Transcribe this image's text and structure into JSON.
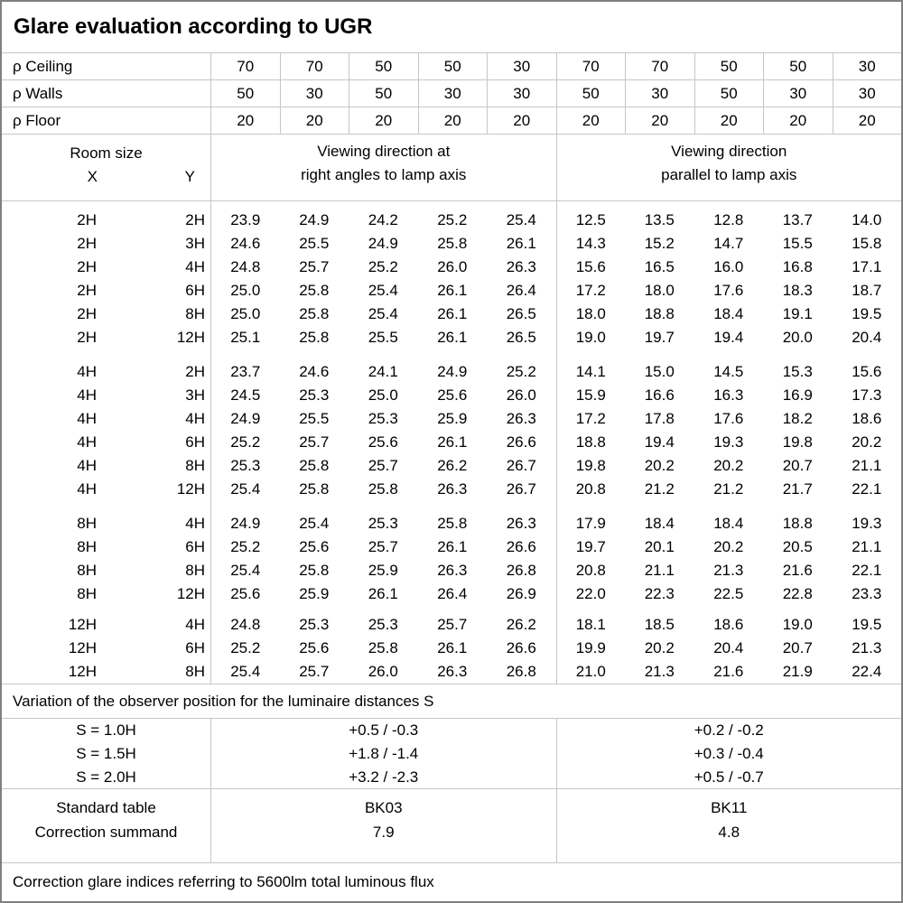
{
  "title": "Glare evaluation according to UGR",
  "colors": {
    "background": "#ffffff",
    "text": "#000000",
    "grid_line": "#c6c6c6",
    "outer_border": "#808080"
  },
  "reflectance_rows": [
    {
      "label": "ρ Ceiling",
      "values": [
        "70",
        "70",
        "50",
        "50",
        "30",
        "70",
        "70",
        "50",
        "50",
        "30"
      ]
    },
    {
      "label": "ρ Walls",
      "values": [
        "50",
        "30",
        "50",
        "30",
        "30",
        "50",
        "30",
        "50",
        "30",
        "30"
      ]
    },
    {
      "label": "ρ Floor",
      "values": [
        "20",
        "20",
        "20",
        "20",
        "20",
        "20",
        "20",
        "20",
        "20",
        "20"
      ]
    }
  ],
  "room_size_header": {
    "title": "Room size",
    "x": "X",
    "y": "Y"
  },
  "viewing_right_angles": {
    "line1": "Viewing direction at",
    "line2": "right angles to lamp axis"
  },
  "viewing_parallel": {
    "line1": "Viewing direction",
    "line2": "parallel to lamp axis"
  },
  "ugr_table": {
    "blocks": [
      {
        "rows": [
          {
            "x": "2H",
            "y": "2H",
            "right_angles": [
              "23.9",
              "24.9",
              "24.2",
              "25.2",
              "25.4"
            ],
            "parallel": [
              "12.5",
              "13.5",
              "12.8",
              "13.7",
              "14.0"
            ]
          },
          {
            "x": "2H",
            "y": "3H",
            "right_angles": [
              "24.6",
              "25.5",
              "24.9",
              "25.8",
              "26.1"
            ],
            "parallel": [
              "14.3",
              "15.2",
              "14.7",
              "15.5",
              "15.8"
            ]
          },
          {
            "x": "2H",
            "y": "4H",
            "right_angles": [
              "24.8",
              "25.7",
              "25.2",
              "26.0",
              "26.3"
            ],
            "parallel": [
              "15.6",
              "16.5",
              "16.0",
              "16.8",
              "17.1"
            ]
          },
          {
            "x": "2H",
            "y": "6H",
            "right_angles": [
              "25.0",
              "25.8",
              "25.4",
              "26.1",
              "26.4"
            ],
            "parallel": [
              "17.2",
              "18.0",
              "17.6",
              "18.3",
              "18.7"
            ]
          },
          {
            "x": "2H",
            "y": "8H",
            "right_angles": [
              "25.0",
              "25.8",
              "25.4",
              "26.1",
              "26.5"
            ],
            "parallel": [
              "18.0",
              "18.8",
              "18.4",
              "19.1",
              "19.5"
            ]
          },
          {
            "x": "2H",
            "y": "12H",
            "right_angles": [
              "25.1",
              "25.8",
              "25.5",
              "26.1",
              "26.5"
            ],
            "parallel": [
              "19.0",
              "19.7",
              "19.4",
              "20.0",
              "20.4"
            ]
          }
        ]
      },
      {
        "rows": [
          {
            "x": "4H",
            "y": "2H",
            "right_angles": [
              "23.7",
              "24.6",
              "24.1",
              "24.9",
              "25.2"
            ],
            "parallel": [
              "14.1",
              "15.0",
              "14.5",
              "15.3",
              "15.6"
            ]
          },
          {
            "x": "4H",
            "y": "3H",
            "right_angles": [
              "24.5",
              "25.3",
              "25.0",
              "25.6",
              "26.0"
            ],
            "parallel": [
              "15.9",
              "16.6",
              "16.3",
              "16.9",
              "17.3"
            ]
          },
          {
            "x": "4H",
            "y": "4H",
            "right_angles": [
              "24.9",
              "25.5",
              "25.3",
              "25.9",
              "26.3"
            ],
            "parallel": [
              "17.2",
              "17.8",
              "17.6",
              "18.2",
              "18.6"
            ]
          },
          {
            "x": "4H",
            "y": "6H",
            "right_angles": [
              "25.2",
              "25.7",
              "25.6",
              "26.1",
              "26.6"
            ],
            "parallel": [
              "18.8",
              "19.4",
              "19.3",
              "19.8",
              "20.2"
            ]
          },
          {
            "x": "4H",
            "y": "8H",
            "right_angles": [
              "25.3",
              "25.8",
              "25.7",
              "26.2",
              "26.7"
            ],
            "parallel": [
              "19.8",
              "20.2",
              "20.2",
              "20.7",
              "21.1"
            ]
          },
          {
            "x": "4H",
            "y": "12H",
            "right_angles": [
              "25.4",
              "25.8",
              "25.8",
              "26.3",
              "26.7"
            ],
            "parallel": [
              "20.8",
              "21.2",
              "21.2",
              "21.7",
              "22.1"
            ]
          }
        ]
      },
      {
        "rows": [
          {
            "x": "8H",
            "y": "4H",
            "right_angles": [
              "24.9",
              "25.4",
              "25.3",
              "25.8",
              "26.3"
            ],
            "parallel": [
              "17.9",
              "18.4",
              "18.4",
              "18.8",
              "19.3"
            ]
          },
          {
            "x": "8H",
            "y": "6H",
            "right_angles": [
              "25.2",
              "25.6",
              "25.7",
              "26.1",
              "26.6"
            ],
            "parallel": [
              "19.7",
              "20.1",
              "20.2",
              "20.5",
              "21.1"
            ]
          },
          {
            "x": "8H",
            "y": "8H",
            "right_angles": [
              "25.4",
              "25.8",
              "25.9",
              "26.3",
              "26.8"
            ],
            "parallel": [
              "20.8",
              "21.1",
              "21.3",
              "21.6",
              "22.1"
            ]
          },
          {
            "x": "8H",
            "y": "12H",
            "right_angles": [
              "25.6",
              "25.9",
              "26.1",
              "26.4",
              "26.9"
            ],
            "parallel": [
              "22.0",
              "22.3",
              "22.5",
              "22.8",
              "23.3"
            ]
          }
        ]
      },
      {
        "rows": [
          {
            "x": "12H",
            "y": "4H",
            "right_angles": [
              "24.8",
              "25.3",
              "25.3",
              "25.7",
              "26.2"
            ],
            "parallel": [
              "18.1",
              "18.5",
              "18.6",
              "19.0",
              "19.5"
            ]
          },
          {
            "x": "12H",
            "y": "6H",
            "right_angles": [
              "25.2",
              "25.6",
              "25.8",
              "26.1",
              "26.6"
            ],
            "parallel": [
              "19.9",
              "20.2",
              "20.4",
              "20.7",
              "21.3"
            ]
          },
          {
            "x": "12H",
            "y": "8H",
            "right_angles": [
              "25.4",
              "25.7",
              "26.0",
              "26.3",
              "26.8"
            ],
            "parallel": [
              "21.0",
              "21.3",
              "21.6",
              "21.9",
              "22.4"
            ]
          }
        ]
      }
    ]
  },
  "observer_variation": {
    "caption": "Variation of the observer position for the luminaire distances S",
    "rows": [
      {
        "s": "S = 1.0H",
        "right_angles": "+0.5 / -0.3",
        "parallel": "+0.2 / -0.2"
      },
      {
        "s": "S = 1.5H",
        "right_angles": "+1.8 / -1.4",
        "parallel": "+0.3 / -0.4"
      },
      {
        "s": "S = 2.0H",
        "right_angles": "+3.2 / -2.3",
        "parallel": "+0.5 / -0.7"
      }
    ]
  },
  "standard_correction": {
    "rows": [
      {
        "label": "Standard table",
        "right_angles": "BK03",
        "parallel": "BK11"
      },
      {
        "label": "Correction summand",
        "right_angles": "7.9",
        "parallel": "4.8"
      }
    ]
  },
  "footer": "Correction glare indices referring to 5600lm total luminous flux"
}
